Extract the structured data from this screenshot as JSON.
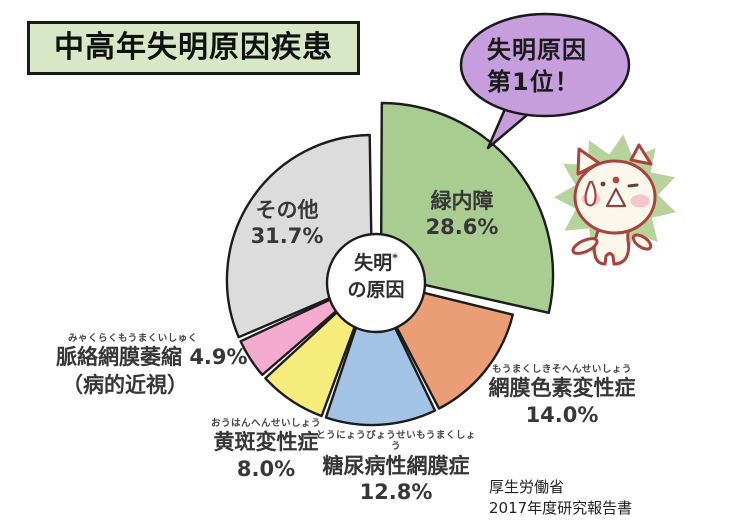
{
  "title": "中高年失明原因疾患",
  "speech_bubble": {
    "line1": "失明原因",
    "line2": "第1位！"
  },
  "center_label": {
    "main": "失明",
    "asterisk": "*",
    "sub": "の原因"
  },
  "source": {
    "line1": "厚生労働省",
    "line2": "2017年度研究報告書"
  },
  "colors": {
    "title_background": "#d8e8c6",
    "bubble": "#c69edd",
    "starburst": "#b7d29a",
    "outline": "#1c1c1c",
    "cat_outline": "#a8443f",
    "cat_body": "#fbf7ea",
    "cat_cheek": "#f5bfc9"
  },
  "chart_data": {
    "type": "pie",
    "title": "中高年失明原因疾患",
    "center_text": "失明*の原因",
    "unit": "%",
    "start_angle_deg": 0,
    "direction": "clockwise",
    "legend": "labels-around-slices",
    "slices": [
      {
        "label": "緑内障",
        "value": 28.6,
        "display": "28.6%",
        "color": "#a9cd90",
        "exploded": true,
        "emphasis": "失明原因第1位"
      },
      {
        "label": "網膜色素変性症",
        "furigana": "もうまくしきそへんせいしょう",
        "value": 14.0,
        "display": "14.0%",
        "color": "#eb9e76"
      },
      {
        "label": "糖尿病性網膜症",
        "furigana": "とうにょうびょうせいもうまくしょう",
        "value": 12.8,
        "display": "12.8%",
        "color": "#a3c3e6"
      },
      {
        "label": "黄斑変性症",
        "furigana": "おうはんへんせいしょう",
        "value": 8.0,
        "display": "8.0%",
        "color": "#f6ec7c"
      },
      {
        "label": "脈絡網膜萎縮",
        "furigana": "みゃくらくもうまくいしゅく",
        "note": "（病的近視）",
        "value": 4.9,
        "display": "4.9%",
        "color": "#f4abce"
      },
      {
        "label": "その他",
        "value": 31.7,
        "display": "31.7%",
        "color": "#dcdcdc"
      }
    ]
  }
}
